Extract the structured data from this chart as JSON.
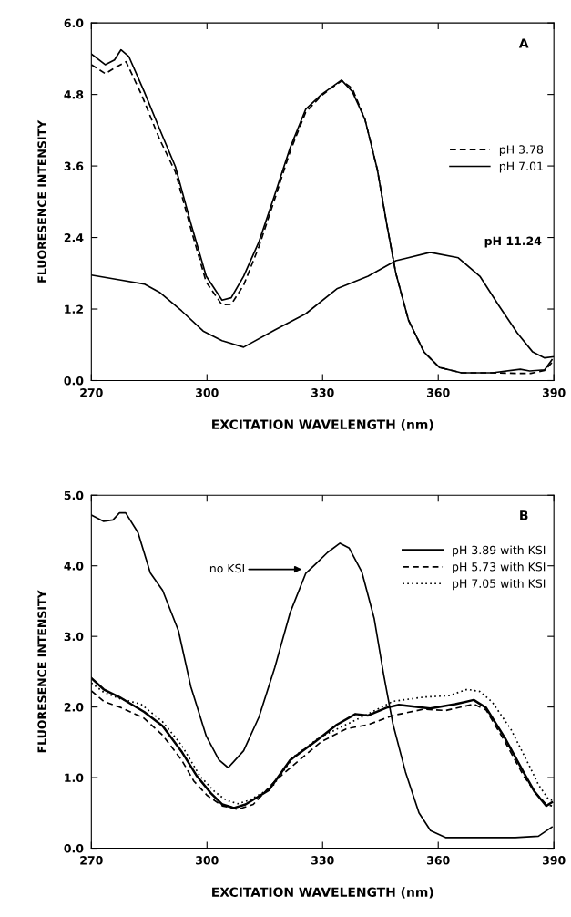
{
  "chart_data": [
    {
      "type": "line",
      "xlabel": "EXCITATION WAVELENGTH (nm)",
      "ylabel": "FLUORESENCE INTENSITY",
      "xlim": [
        270,
        390
      ],
      "xticks": [
        270,
        300,
        330,
        360,
        390
      ],
      "ylim": [
        0,
        6
      ],
      "yticks": [
        {
          "value": 0,
          "label": "0.0"
        },
        {
          "value": 1.2,
          "label": "1.2"
        },
        {
          "value": 2.4,
          "label": "2.4"
        },
        {
          "value": 3.6,
          "label": "3.6"
        },
        {
          "value": 4.8,
          "label": "4.8"
        },
        {
          "value": 6,
          "label": "6.0"
        }
      ],
      "legend": "right",
      "grid": false,
      "marker": "none",
      "annotations": [
        "A",
        {
          "text": "pH 11.24",
          "x": 366,
          "y": 2.06
        }
      ],
      "series": [
        {
          "name": "pH 3.78",
          "color": "#000000",
          "line_style": "dashed",
          "x": [
            270,
            273.6,
            277,
            279,
            283,
            287.7,
            291.8,
            295.8,
            299.8,
            303.9,
            306.3,
            309.5,
            313.5,
            317.6,
            321.6,
            325.6,
            329.7,
            332.1,
            335,
            337.7,
            341,
            344.2,
            346.6,
            349,
            352.3,
            356.3,
            360.3,
            366,
            374,
            381,
            384,
            387.6,
            389.5
          ],
          "values": [
            5.3,
            5.15,
            5.28,
            5.35,
            4.8,
            4.05,
            3.5,
            2.55,
            1.65,
            1.27,
            1.28,
            1.6,
            2.25,
            3.05,
            3.85,
            4.5,
            4.78,
            4.9,
            5.03,
            4.9,
            4.38,
            3.54,
            2.64,
            1.8,
            1.01,
            0.48,
            0.22,
            0.13,
            0.13,
            0.12,
            0.12,
            0.17,
            0.3
          ]
        },
        {
          "name": "pH 7.01",
          "color": "#000000",
          "line_style": "solid",
          "x": [
            270,
            273.6,
            276,
            277.7,
            279.7,
            283.7,
            287.7,
            291.8,
            295.8,
            299.8,
            303.9,
            306.3,
            309.5,
            313.5,
            317.6,
            321.6,
            325.6,
            329.7,
            332.1,
            334.9,
            337.7,
            341,
            344.2,
            346.6,
            349,
            352.3,
            356.3,
            360.3,
            366,
            374,
            381.3,
            383.7,
            387.6,
            389.5
          ],
          "values": [
            5.48,
            5.3,
            5.38,
            5.55,
            5.44,
            4.85,
            4.22,
            3.59,
            2.64,
            1.75,
            1.35,
            1.39,
            1.75,
            2.33,
            3.12,
            3.91,
            4.55,
            4.8,
            4.91,
            5.04,
            4.85,
            4.38,
            3.54,
            2.64,
            1.8,
            1.01,
            0.48,
            0.22,
            0.13,
            0.13,
            0.19,
            0.16,
            0.18,
            0.35
          ]
        },
        {
          "color": "#000000",
          "line_style": "solid",
          "x": [
            270,
            277.3,
            283.7,
            287.7,
            293.4,
            299,
            303.9,
            309.5,
            317.6,
            325.6,
            333.7,
            341.8,
            349,
            351.5,
            357.9,
            365.2,
            370.8,
            375.6,
            380.5,
            384.5,
            387.6,
            390
          ],
          "values": [
            1.77,
            1.69,
            1.62,
            1.48,
            1.17,
            0.83,
            0.67,
            0.56,
            0.85,
            1.12,
            1.54,
            1.75,
            2.01,
            2.05,
            2.15,
            2.06,
            1.75,
            1.27,
            0.8,
            0.48,
            0.38,
            0.4
          ]
        }
      ]
    },
    {
      "type": "line",
      "xlabel": "EXCITATION WAVELENGTH (nm)",
      "ylabel": "FLUORESENCE INTENSITY",
      "xlim": [
        270,
        390
      ],
      "xticks": [
        270,
        300,
        330,
        360,
        390
      ],
      "ylim": [
        0,
        5
      ],
      "yticks": [
        {
          "value": 0,
          "label": "0.0"
        },
        {
          "value": 1,
          "label": "1.0"
        },
        {
          "value": 2,
          "label": "2.0"
        },
        {
          "value": 3,
          "label": "3.0"
        },
        {
          "value": 4,
          "label": "4.0"
        },
        {
          "value": 5,
          "label": "5.0"
        }
      ],
      "legend": "top right",
      "grid": false,
      "marker": "none",
      "annotations": [
        "B",
        "no KSI"
      ],
      "series": [
        {
          "color": "#000000",
          "line_style": "solid",
          "x": [
            270,
            273.2,
            275.6,
            277.3,
            278.9,
            282.1,
            285.3,
            288.5,
            292.6,
            295.8,
            299.8,
            303.1,
            305.5,
            309.5,
            313.5,
            317.6,
            321.6,
            325.6,
            328.1,
            331.3,
            334.5,
            336.9,
            340.2,
            343.4,
            345.8,
            348.2,
            351.5,
            355,
            358,
            362,
            380,
            386,
            389.5
          ],
          "values": [
            4.72,
            4.63,
            4.65,
            4.75,
            4.75,
            4.47,
            3.9,
            3.65,
            3.08,
            2.29,
            1.59,
            1.25,
            1.14,
            1.38,
            1.86,
            2.56,
            3.34,
            3.89,
            4.02,
            4.19,
            4.32,
            4.25,
            3.91,
            3.25,
            2.47,
            1.77,
            1.08,
            0.5,
            0.25,
            0.15,
            0.15,
            0.17,
            0.3
          ]
        },
        {
          "name": "pH 3.89 with KSI",
          "color": "#000000",
          "line_style": "solid",
          "x": [
            270,
            273.2,
            277.3,
            283.7,
            288.5,
            293.4,
            297.4,
            301,
            304,
            307,
            310,
            316,
            321.6,
            328.1,
            333.7,
            338.5,
            341.8,
            346.6,
            349.8,
            357.9,
            364.4,
            369.2,
            372.4,
            377.3,
            382.1,
            385,
            388,
            389.5
          ],
          "values": [
            2.41,
            2.25,
            2.14,
            1.93,
            1.73,
            1.37,
            1.02,
            0.78,
            0.62,
            0.57,
            0.62,
            0.82,
            1.25,
            1.51,
            1.75,
            1.9,
            1.88,
            1.99,
            2.03,
            1.98,
            2.04,
            2.1,
            1.99,
            1.56,
            1.08,
            0.8,
            0.6,
            0.65
          ]
        },
        {
          "name": "pH 5.73 with KSI",
          "color": "#000000",
          "line_style": "dashed",
          "x": [
            270,
            273.2,
            277.3,
            283.7,
            288.5,
            293.4,
            296.6,
            300,
            304,
            308,
            312,
            317.6,
            324,
            329.7,
            336.1,
            341.8,
            348.2,
            356.3,
            361.9,
            369.2,
            372.4,
            377.3,
            382.1,
            385,
            388,
            389.5
          ],
          "values": [
            2.23,
            2.08,
            2.0,
            1.84,
            1.6,
            1.25,
            0.95,
            0.75,
            0.6,
            0.55,
            0.62,
            0.95,
            1.25,
            1.51,
            1.69,
            1.75,
            1.88,
            1.97,
            1.95,
            2.04,
            1.96,
            1.51,
            1.03,
            0.8,
            0.62,
            0.6
          ]
        },
        {
          "name": "pH 7.05 with KSI",
          "color": "#000000",
          "line_style": "dotted",
          "x": [
            270,
            273.2,
            277.3,
            282.9,
            288.5,
            293.4,
            298.2,
            302,
            305,
            308,
            311,
            316.8,
            322.4,
            328.9,
            335.3,
            341.8,
            348.2,
            356.3,
            362.7,
            367.5,
            370.8,
            374,
            378.9,
            383.7,
            386,
            388.5,
            389.5
          ],
          "values": [
            2.34,
            2.21,
            2.12,
            2.04,
            1.79,
            1.46,
            1.02,
            0.8,
            0.68,
            0.63,
            0.68,
            0.86,
            1.29,
            1.56,
            1.73,
            1.9,
            2.08,
            2.14,
            2.16,
            2.25,
            2.22,
            2.07,
            1.68,
            1.16,
            0.9,
            0.7,
            0.68
          ]
        }
      ]
    }
  ]
}
